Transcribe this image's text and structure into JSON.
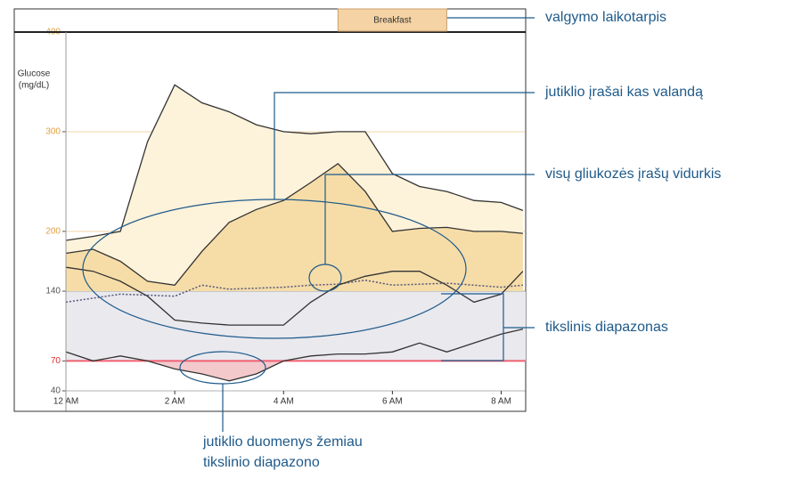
{
  "chart_data": {
    "type": "line",
    "y_label": [
      "Glucose",
      "(mg/dL)"
    ],
    "x": [
      0,
      0.5,
      1,
      1.5,
      2,
      2.5,
      3,
      3.5,
      4,
      4.5,
      5,
      5.5,
      6,
      6.5,
      7,
      7.5,
      8,
      8.4
    ],
    "series": [
      {
        "color": "#333333",
        "fill": "#fdf2da",
        "fill_side": "above",
        "values": [
          191,
          195,
          200,
          290,
          347,
          329,
          320,
          307,
          300,
          298,
          300,
          300,
          258,
          245,
          240,
          231,
          229,
          221
        ]
      },
      {
        "color": "#333333",
        "fill": "#f6dda8",
        "fill_side": "above",
        "values": [
          178,
          182,
          170,
          150,
          146,
          180,
          209,
          222,
          231,
          249,
          268,
          240,
          200,
          203,
          204,
          200,
          200,
          198
        ]
      },
      {
        "color": "#555577",
        "dash": true,
        "values": [
          129,
          133,
          137,
          136,
          135,
          146,
          142,
          143,
          144,
          146,
          147,
          151,
          146,
          147,
          148,
          146,
          144,
          146
        ]
      },
      {
        "color": "#333333",
        "values": [
          164,
          160,
          150,
          135,
          111,
          108,
          106,
          106,
          106,
          129,
          146,
          155,
          160,
          160,
          146,
          129,
          137,
          160
        ]
      },
      {
        "color": "#333333",
        "fill": "#f3c9cc",
        "fill_side": "below",
        "values": [
          79,
          70,
          75,
          70,
          62,
          57,
          50,
          57,
          70,
          75,
          77,
          77,
          79,
          88,
          79,
          88,
          97,
          102
        ]
      }
    ],
    "xlim": [
      0,
      8.45
    ],
    "xticks": [
      {
        "value": 0,
        "label": "12 AM"
      },
      {
        "value": 2,
        "label": "2 AM"
      },
      {
        "value": 4,
        "label": "4 AM"
      },
      {
        "value": 6,
        "label": "6 AM"
      },
      {
        "value": 8,
        "label": "8 AM"
      }
    ],
    "ylim": [
      40,
      400
    ],
    "yticks": [
      40,
      70,
      140,
      200,
      300,
      400
    ],
    "ytick_colors": [
      "#555555",
      "#e03030",
      "#555555",
      "#e0a040",
      "#e0a040",
      "#e0a040"
    ],
    "target_range": [
      70,
      140
    ],
    "target_color": "#e9e9ee",
    "low_line_color": "#f06070",
    "meal": {
      "label": "Breakfast",
      "x": [
        5,
        7
      ],
      "color": "#f5d3a4"
    },
    "annotations": [
      "valgymo laikotarpis",
      "jutiklio įrašai kas valandą",
      "visų gliukozės įrašų vidurkis",
      "tikslinis diapazonas",
      "jutiklio duomenys žemiau",
      "tikslinio diapazono"
    ]
  }
}
